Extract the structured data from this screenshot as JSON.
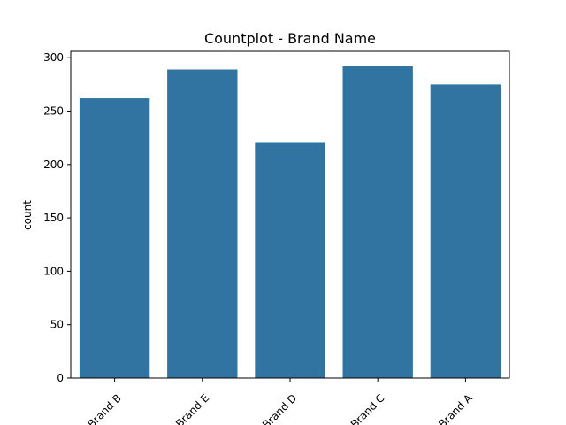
{
  "chart_data": {
    "type": "bar",
    "title": "Countplot - Brand Name",
    "xlabel": "",
    "ylabel": "count",
    "categories": [
      "Brand B",
      "Brand E",
      "Brand D",
      "Brand C",
      "Brand A"
    ],
    "values": [
      262,
      289,
      221,
      292,
      275
    ],
    "ylim": [
      0,
      306
    ],
    "yticks": [
      0,
      50,
      100,
      150,
      200,
      250,
      300
    ],
    "bar_color": "#3274a1",
    "grid": false,
    "legend": "none",
    "xtick_rotation": 45
  }
}
